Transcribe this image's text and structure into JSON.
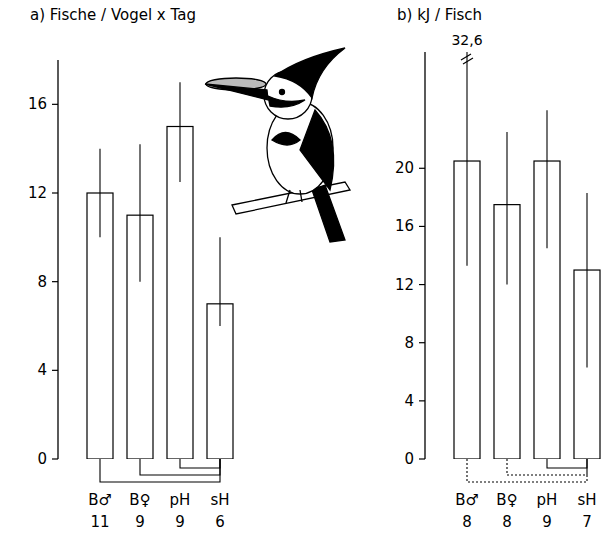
{
  "chart_data": [
    {
      "type": "bar",
      "title": "a) Fische / Vogel x Tag",
      "categories": [
        "B♂",
        "B♀",
        "pH",
        "sH"
      ],
      "values": [
        12,
        11,
        15,
        7
      ],
      "error_upper": [
        14,
        14.2,
        17,
        10
      ],
      "error_lower": [
        10,
        8,
        12.5,
        6
      ],
      "n": [
        11,
        9,
        9,
        6
      ],
      "ylim": [
        0,
        18
      ],
      "yticks": [
        0,
        4,
        8,
        12,
        16
      ],
      "color": "#ffffff",
      "brackets": [
        {
          "pair": [
            0,
            3
          ],
          "line_style": "solid"
        },
        {
          "pair": [
            1,
            3
          ],
          "line_style": "solid"
        },
        {
          "pair": [
            2,
            3
          ],
          "line_style": "solid"
        }
      ]
    },
    {
      "type": "bar",
      "title": "b) kJ / Fisch",
      "categories": [
        "B♂",
        "B♀",
        "pH",
        "sH"
      ],
      "values": [
        20.5,
        17.5,
        20.5,
        13
      ],
      "error_upper": [
        32.6,
        22.5,
        24,
        18.3
      ],
      "error_lower": [
        13.3,
        12,
        14.5,
        6.3
      ],
      "n": [
        8,
        8,
        9,
        7
      ],
      "ylim": [
        0,
        28
      ],
      "yticks": [
        0,
        4,
        8,
        12,
        16,
        20
      ],
      "color": "#ffffff",
      "brackets": [
        {
          "pair": [
            0,
            3
          ],
          "line_style": "dotted"
        },
        {
          "pair": [
            1,
            3
          ],
          "line_style": "dotted"
        },
        {
          "pair": [
            2,
            3
          ],
          "line_style": "solid"
        }
      ],
      "annotations": [
        {
          "text": "32,6",
          "category": 0
        }
      ]
    }
  ]
}
